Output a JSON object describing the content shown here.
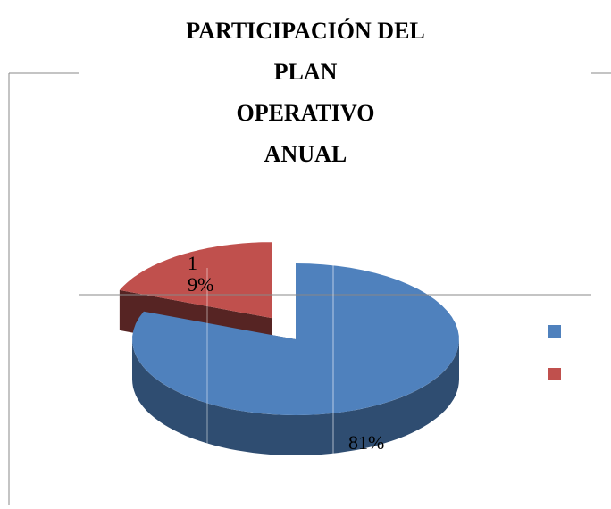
{
  "chart_data": {
    "type": "pie",
    "title": "PARTICIPACIÓN DEL\nPLAN\nOPERATIVO\nANUAL",
    "values": [
      81,
      19
    ],
    "value_labels": [
      "81%",
      "19%"
    ],
    "colors": [
      "#4f81bd",
      "#c0504d"
    ],
    "legend": "right"
  }
}
